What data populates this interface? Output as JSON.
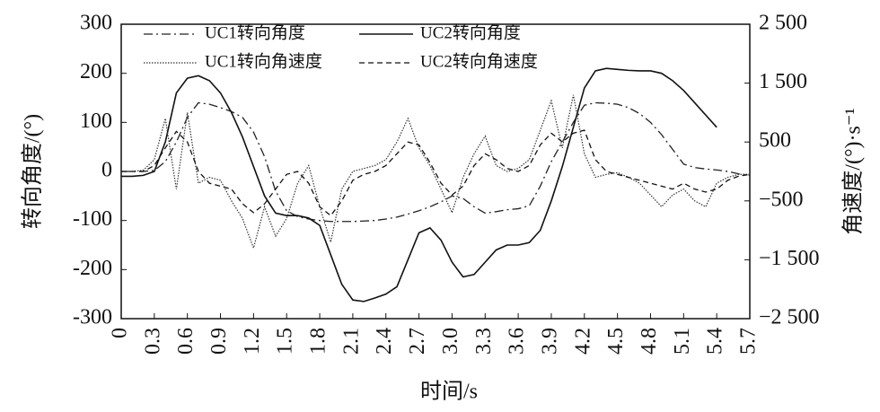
{
  "chart_data": {
    "type": "line",
    "x_label": "时间/s",
    "y_label": "转向角度/(°)",
    "y2_label": "角速度/(°)·s⁻¹",
    "x": [
      0,
      0.1,
      0.2,
      0.3,
      0.4,
      0.5,
      0.6,
      0.7,
      0.8,
      0.9,
      1,
      1.1,
      1.2,
      1.3,
      1.4,
      1.5,
      1.6,
      1.7,
      1.8,
      1.9,
      2,
      2.1,
      2.2,
      2.3,
      2.4,
      2.5,
      2.6,
      2.7,
      2.8,
      2.9,
      3,
      3.1,
      3.2,
      3.3,
      3.4,
      3.5,
      3.6,
      3.7,
      3.8,
      3.9,
      4,
      4.1,
      4.2,
      4.3,
      4.4,
      4.5,
      4.6,
      4.7,
      4.8,
      4.9,
      5,
      5.1,
      5.2,
      5.3,
      5.4,
      5.5,
      5.6,
      5.7
    ],
    "series": [
      {
        "name": "UC1转向角度",
        "color": "#222222",
        "line_style": "dashdot",
        "values": [
          0,
          0,
          0,
          2,
          20,
          60,
          110,
          140,
          137,
          130,
          122,
          110,
          80,
          30,
          -40,
          -80,
          -92,
          -97,
          -100,
          -102,
          -102,
          -102,
          -101,
          -100,
          -97,
          -93,
          -87,
          -80,
          -72,
          -62,
          -50,
          -55,
          -72,
          -85,
          -82,
          -78,
          -76,
          -70,
          -30,
          20,
          60,
          100,
          135,
          140,
          139,
          137,
          130,
          118,
          100,
          75,
          45,
          15,
          8,
          5,
          3,
          0,
          -5,
          -8
        ]
      },
      {
        "name": "UC2转向角度",
        "color": "#111111",
        "line_style": "solid",
        "values": [
          -10,
          -10,
          -8,
          0,
          60,
          160,
          190,
          195,
          185,
          160,
          120,
          70,
          10,
          -50,
          -85,
          -90,
          -90,
          -95,
          -110,
          -170,
          -230,
          -262,
          -265,
          -258,
          -250,
          -235,
          -180,
          -125,
          -115,
          -140,
          -185,
          -215,
          -210,
          -185,
          -160,
          -150,
          -150,
          -145,
          -120,
          -60,
          10,
          90,
          170,
          205,
          210,
          208,
          206,
          205,
          205,
          200,
          185,
          165,
          140,
          115,
          90,
          null,
          null,
          null
        ]
      },
      {
        "name": "UC1转向角速度",
        "color": "#333333",
        "line_style": "dotted",
        "axis": "y2",
        "values": [
          0,
          0,
          20,
          200,
          900,
          -300,
          1000,
          -200,
          -100,
          -150,
          -500,
          -800,
          -1300,
          -600,
          -1100,
          -800,
          -200,
          100,
          -600,
          -1200,
          -300,
          0,
          50,
          100,
          200,
          500,
          900,
          400,
          100,
          -300,
          -700,
          -100,
          300,
          600,
          100,
          0,
          50,
          200,
          700,
          1200,
          400,
          1300,
          300,
          -100,
          -50,
          -20,
          -100,
          -200,
          -400,
          -600,
          -400,
          -300,
          -500,
          -600,
          -200,
          -100,
          -50,
          -50
        ]
      },
      {
        "name": "UC2转向角速度",
        "color": "#111111",
        "line_style": "dashed",
        "axis": "y2",
        "values": [
          0,
          0,
          0,
          100,
          400,
          680,
          500,
          0,
          -200,
          -250,
          -300,
          -550,
          -700,
          -550,
          -300,
          -50,
          0,
          -200,
          -600,
          -750,
          -500,
          -150,
          -50,
          0,
          100,
          300,
          500,
          450,
          150,
          -200,
          -400,
          -250,
          100,
          300,
          200,
          50,
          0,
          100,
          450,
          650,
          500,
          650,
          700,
          200,
          0,
          -50,
          -100,
          -150,
          -200,
          -250,
          -300,
          -200,
          -300,
          -350,
          -300,
          -150,
          -80,
          -50
        ]
      }
    ],
    "xlim": [
      0,
      5.7
    ],
    "xticks": [
      0,
      0.3,
      0.6,
      0.9,
      1.2,
      1.5,
      1.8,
      2.1,
      2.4,
      2.7,
      {
        "value": 3,
        "label": "3.0"
      },
      3.3,
      3.6,
      3.9,
      4.2,
      4.5,
      4.8,
      5.1,
      5.4,
      5.7
    ],
    "ylim": [
      -300,
      300
    ],
    "yticks": [
      -300,
      -200,
      -100,
      0,
      100,
      200,
      300
    ],
    "y2lim": [
      -2500,
      2500
    ],
    "y2ticks": [
      {
        "value": -2500,
        "label": "−2 500"
      },
      {
        "value": -1500,
        "label": "−1 500"
      },
      {
        "value": -500,
        "label": "−500"
      },
      500,
      {
        "value": 1500,
        "label": "1 500"
      },
      {
        "value": 2500,
        "label": "2 500"
      }
    ]
  }
}
